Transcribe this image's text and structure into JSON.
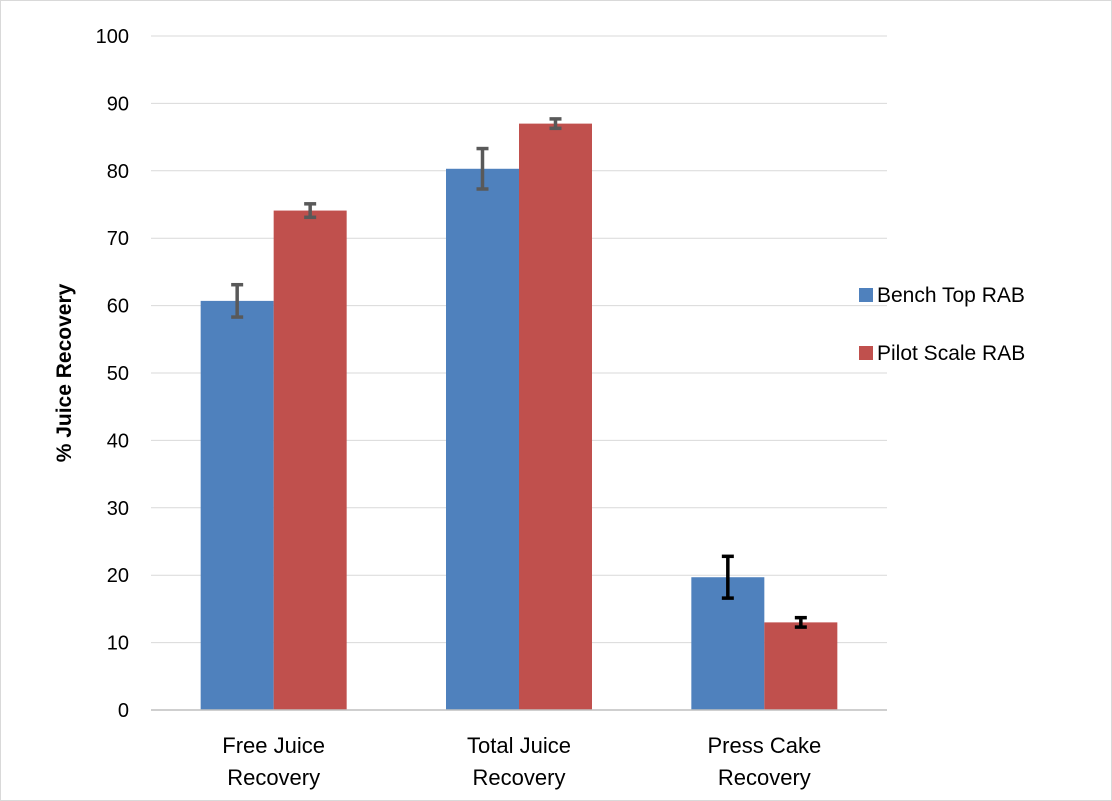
{
  "chart_data": {
    "type": "bar",
    "title": "",
    "xlabel": "",
    "ylabel": "% Juice Recovery",
    "ylim": [
      0,
      100
    ],
    "yticks": [
      0,
      10,
      20,
      30,
      40,
      50,
      60,
      70,
      80,
      90,
      100
    ],
    "grid": true,
    "legend_position": "right",
    "categories": [
      [
        "Free Juice",
        "Recovery"
      ],
      [
        "Total Juice",
        "Recovery"
      ],
      [
        "Press Cake",
        "Recovery"
      ]
    ],
    "series": [
      {
        "name": "Bench Top RAB",
        "color": "#4f81bd",
        "values": [
          60.7,
          80.3,
          19.7
        ],
        "errors": [
          2.4,
          3.0,
          3.1
        ],
        "error_color": [
          "#595959",
          "#595959",
          "#000000"
        ]
      },
      {
        "name": "Pilot Scale RAB",
        "color": "#c0504d",
        "values": [
          74.1,
          87.0,
          13.0
        ],
        "errors": [
          1.0,
          0.7,
          0.7
        ],
        "error_color": [
          "#595959",
          "#595959",
          "#000000"
        ]
      }
    ]
  }
}
